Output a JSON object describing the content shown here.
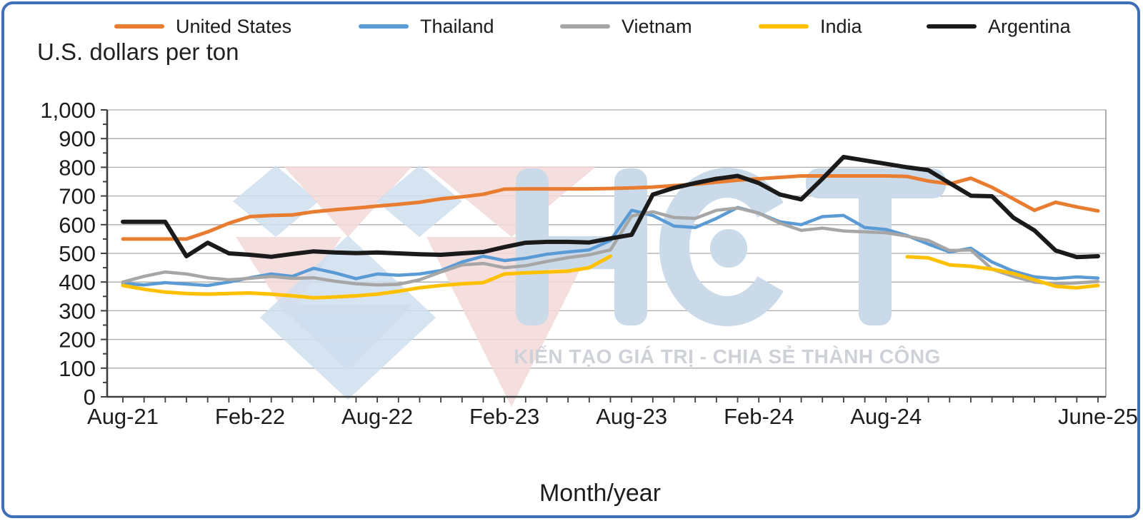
{
  "page": {
    "border_color": "#3f6fb7",
    "background": "#ffffff"
  },
  "title": "U.S. dollars per ton",
  "legend": [
    {
      "label": "United States",
      "color": "#e87d31"
    },
    {
      "label": "Thailand",
      "color": "#5b9bd5"
    },
    {
      "label": "Vietnam",
      "color": "#a6a6a6"
    },
    {
      "label": "India",
      "color": "#ffc000"
    },
    {
      "label": "Argentina",
      "color": "#1a1a1a"
    }
  ],
  "watermark": {
    "logo_text": "HCT",
    "slogan": "KIẾN TẠO GIÁ TRỊ - CHIA SẺ THÀNH CÔNG",
    "logo_blue": "#cfdeee",
    "logo_pink": "#f2d8d8",
    "letter_color": "#cbdae9"
  },
  "x_axis_title": "Month/year",
  "chart_data": {
    "type": "line",
    "title": "U.S. dollars per ton",
    "xlabel": "Month/year",
    "ylabel": "U.S. dollars per ton",
    "ylim": [
      0,
      1000
    ],
    "grid": "horizontal",
    "legend_position": "top",
    "y_tick_labels": [
      "0",
      "100",
      "200",
      "300",
      "400",
      "500",
      "600",
      "700",
      "800",
      "900",
      "1,000"
    ],
    "x": [
      "Aug-21",
      "Sep-21",
      "Oct-21",
      "Nov-21",
      "Dec-21",
      "Jan-22",
      "Feb-22",
      "Mar-22",
      "Apr-22",
      "May-22",
      "Jun-22",
      "Jul-22",
      "Aug-22",
      "Sep-22",
      "Oct-22",
      "Nov-22",
      "Dec-22",
      "Jan-23",
      "Feb-23",
      "Mar-23",
      "Apr-23",
      "May-23",
      "Jun-23",
      "Jul-23",
      "Aug-23",
      "Sep-23",
      "Oct-23",
      "Nov-23",
      "Dec-23",
      "Jan-24",
      "Feb-24",
      "Mar-24",
      "Apr-24",
      "May-24",
      "Jun-24",
      "Jul-24",
      "Aug-24",
      "Sep-24",
      "Oct-24",
      "Nov-24",
      "Dec-24",
      "Jan-25",
      "Feb-25",
      "Mar-25",
      "Apr-25",
      "May-25",
      "Jun-25"
    ],
    "x_tick_labels": [
      "Aug-21",
      "Feb-22",
      "Aug-22",
      "Feb-23",
      "Aug-23",
      "Feb-24",
      "Aug-24",
      "June-25"
    ],
    "x_tick_positions": [
      0,
      6,
      12,
      18,
      24,
      30,
      36,
      46
    ],
    "series": [
      {
        "name": "United States",
        "color": "#e87d31",
        "width": 5,
        "values": [
          550,
          550,
          550,
          550,
          575,
          605,
          628,
          632,
          634,
          645,
          652,
          658,
          665,
          671,
          678,
          690,
          697,
          706,
          724,
          725,
          725,
          725,
          725,
          726,
          728,
          731,
          736,
          741,
          748,
          755,
          760,
          765,
          770,
          770,
          770,
          770,
          770,
          768,
          752,
          742,
          762,
          730,
          690,
          650,
          678,
          662,
          648
        ]
      },
      {
        "name": "Thailand",
        "color": "#5b9bd5",
        "width": 4.5,
        "values": [
          395,
          390,
          398,
          393,
          388,
          400,
          415,
          428,
          420,
          448,
          432,
          412,
          428,
          424,
          428,
          440,
          470,
          490,
          475,
          483,
          497,
          505,
          512,
          545,
          650,
          632,
          595,
          590,
          622,
          660,
          640,
          610,
          600,
          628,
          632,
          590,
          583,
          562,
          532,
          505,
          518,
          470,
          438,
          418,
          412,
          418,
          414
        ]
      },
      {
        "name": "Vietnam",
        "color": "#a6a6a6",
        "width": 4.5,
        "values": [
          400,
          420,
          435,
          428,
          415,
          408,
          413,
          420,
          413,
          415,
          403,
          394,
          390,
          392,
          408,
          435,
          460,
          465,
          450,
          457,
          472,
          485,
          495,
          512,
          630,
          645,
          625,
          622,
          650,
          658,
          640,
          605,
          580,
          588,
          578,
          575,
          572,
          560,
          545,
          510,
          512,
          445,
          420,
          400,
          394,
          397,
          402
        ]
      },
      {
        "name": "India",
        "color": "#ffc000",
        "width": 5,
        "values": [
          388,
          375,
          365,
          360,
          358,
          360,
          362,
          358,
          352,
          345,
          348,
          352,
          358,
          368,
          380,
          388,
          394,
          398,
          428,
          432,
          435,
          438,
          450,
          490,
          null,
          null,
          null,
          null,
          null,
          null,
          null,
          null,
          null,
          null,
          null,
          null,
          null,
          488,
          484,
          460,
          455,
          445,
          430,
          408,
          385,
          380,
          388
        ]
      },
      {
        "name": "Argentina",
        "color": "#1a1a1a",
        "width": 6,
        "values": [
          610,
          610,
          610,
          490,
          537,
          500,
          495,
          488,
          498,
          507,
          503,
          501,
          503,
          500,
          497,
          495,
          500,
          505,
          522,
          537,
          540,
          540,
          538,
          552,
          565,
          705,
          728,
          745,
          760,
          770,
          745,
          705,
          688,
          760,
          836,
          824,
          812,
          800,
          790,
          745,
          701,
          699,
          625,
          580,
          510,
          487,
          490
        ]
      }
    ]
  }
}
